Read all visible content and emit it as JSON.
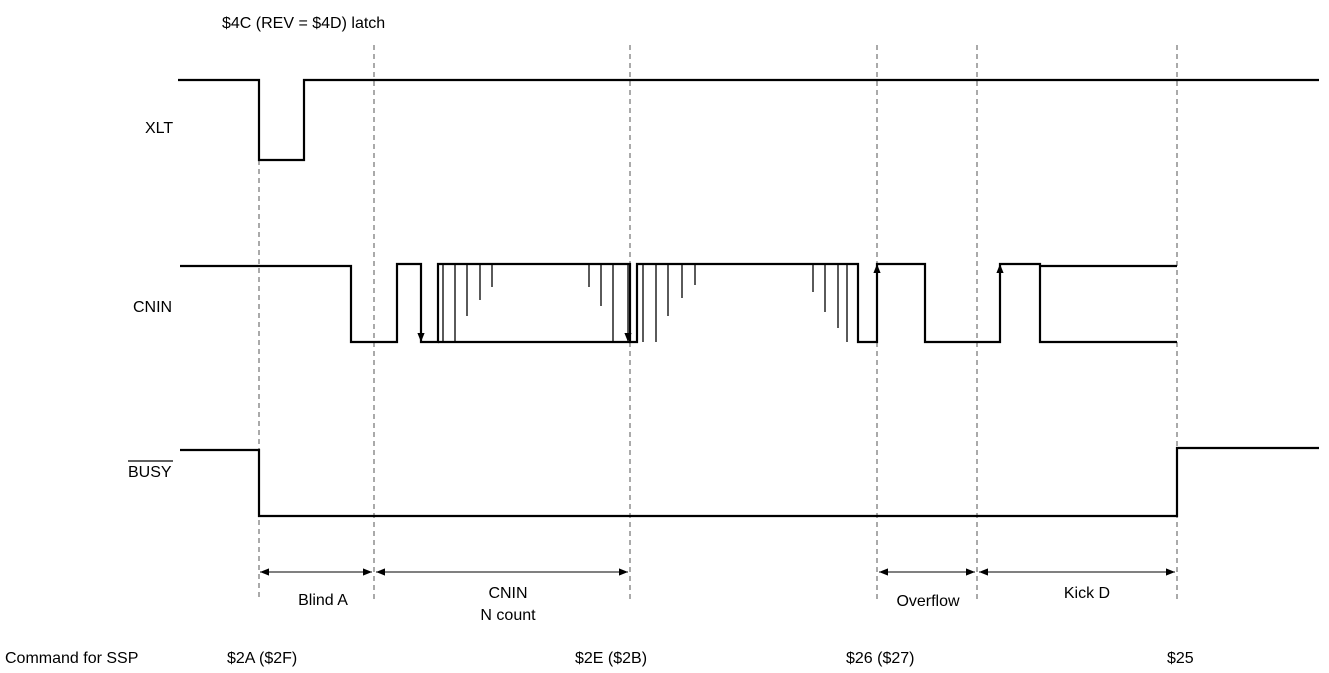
{
  "title": "$4C (REV = $4D) latch",
  "signals": {
    "xlt": "XLT",
    "cnin": "CNIN",
    "busy": "BUSY"
  },
  "intervals": {
    "blind_a": "Blind A",
    "cnin_line1": "CNIN",
    "cnin_line2": "N count",
    "overflow": "Overflow",
    "kick_d": "Kick D"
  },
  "commands": {
    "label": "Command for SSP",
    "c1": "$2A ($2F)",
    "c2": "$2E ($2B)",
    "c3": "$26 ($27)",
    "c4": "$25"
  }
}
